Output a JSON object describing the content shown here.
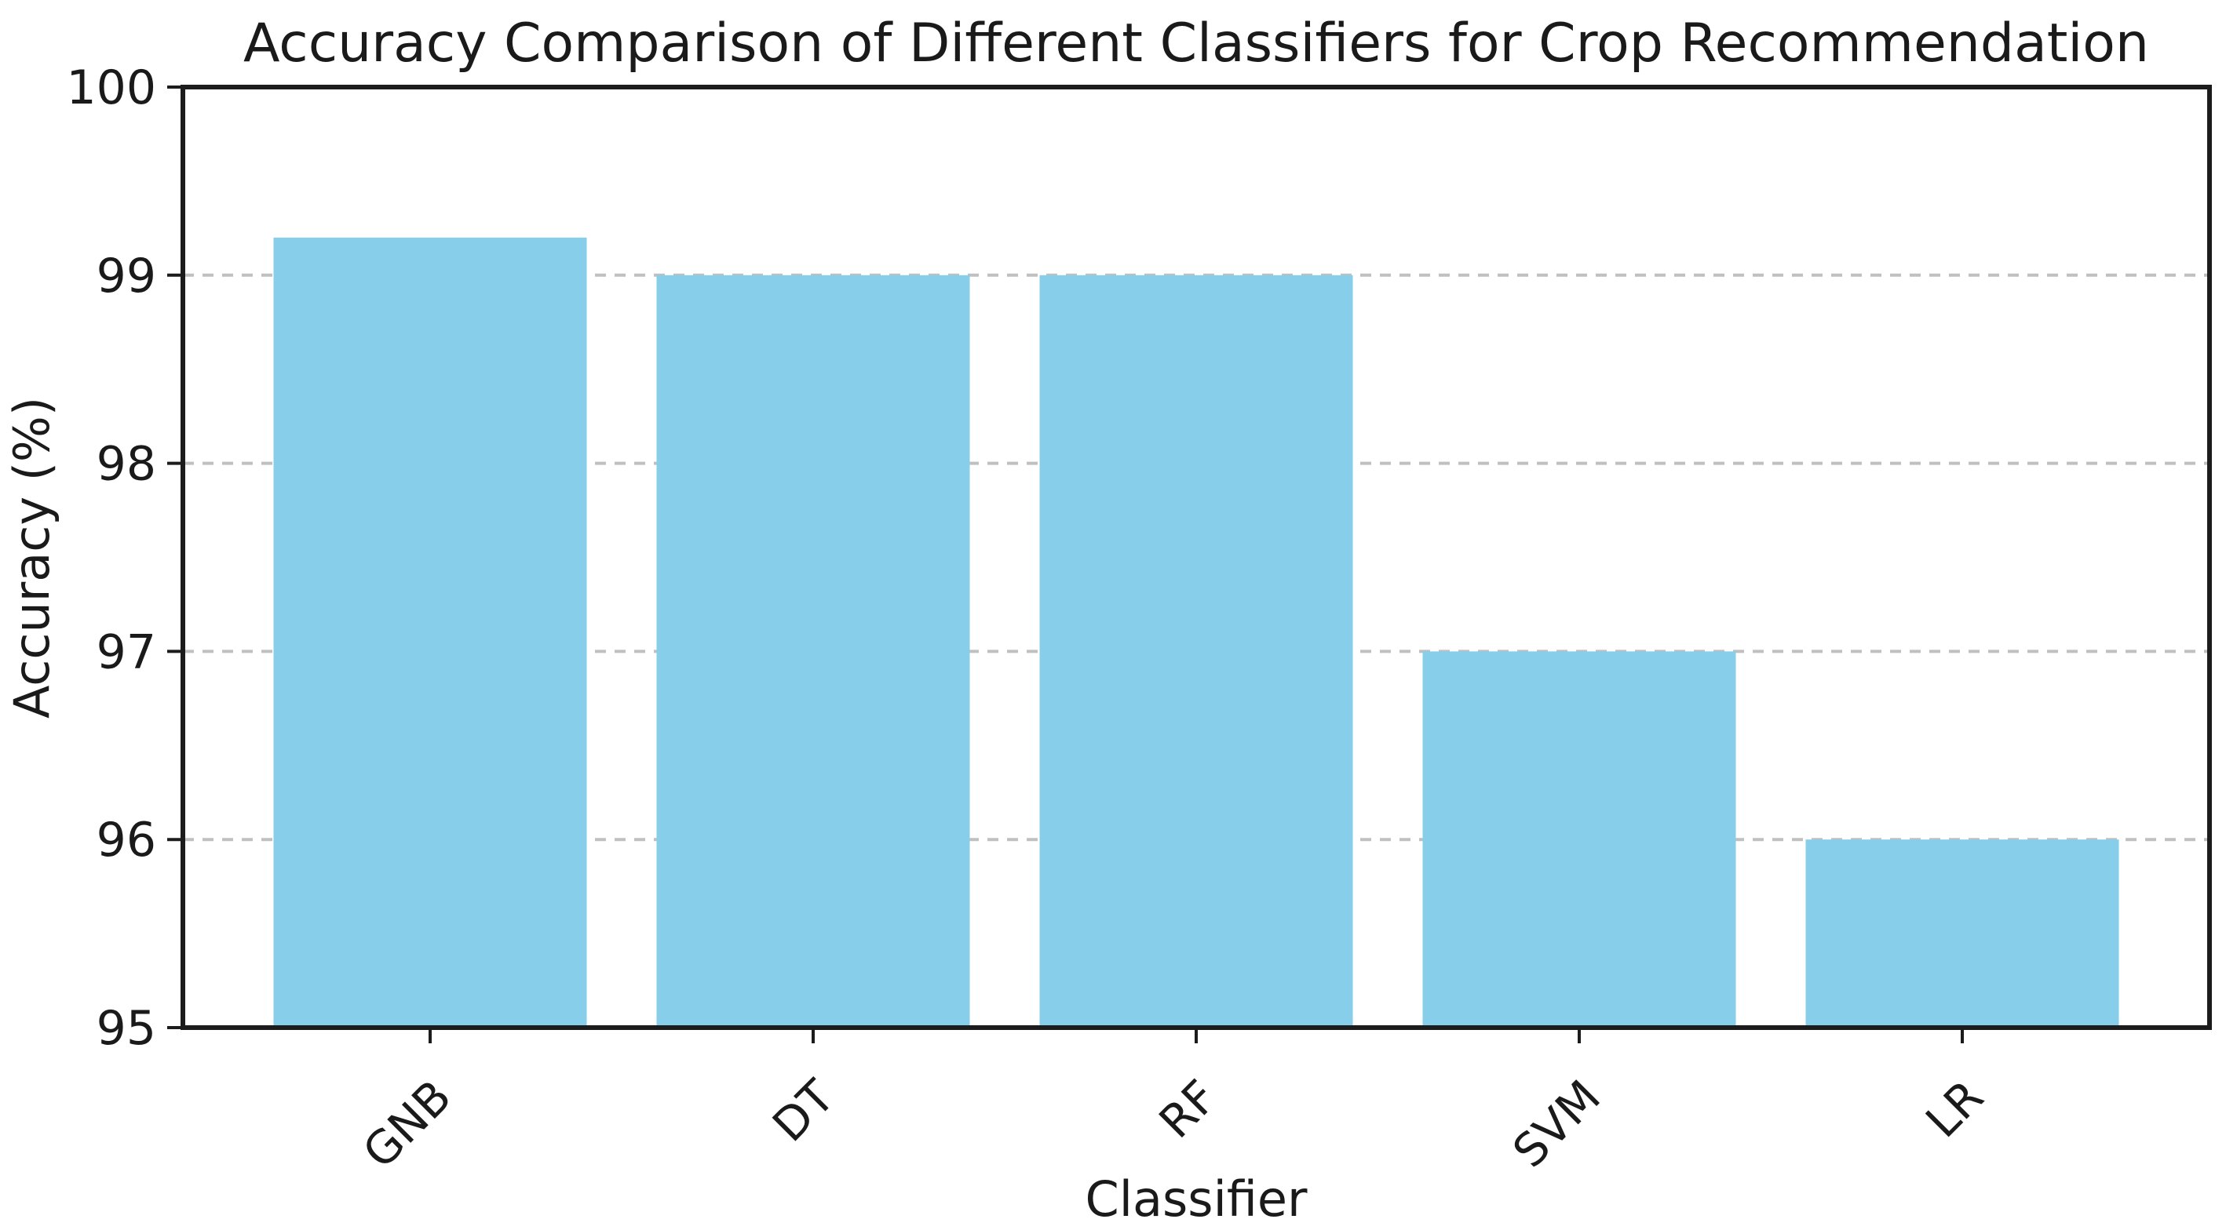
{
  "chart_data": {
    "type": "bar",
    "title": "Accuracy Comparison of Different Classifiers for Crop Recommendation",
    "xlabel": "Classifier",
    "ylabel": "Accuracy (%)",
    "categories": [
      "GNB",
      "DT",
      "RF",
      "SVM",
      "LR"
    ],
    "values": [
      99.2,
      99.0,
      99.0,
      97.0,
      96.0
    ],
    "ylim": [
      95,
      100
    ],
    "yticks": [
      95,
      96,
      97,
      98,
      99,
      100
    ],
    "xtick_rotation": 45,
    "grid": "horizontal-dashed",
    "legend": "none",
    "colors": {
      "bar": "#87CEEB",
      "grid": "#c0c0c0",
      "axis": "#1c1c1c",
      "text": "#1a1a1a",
      "background": "#ffffff"
    }
  }
}
